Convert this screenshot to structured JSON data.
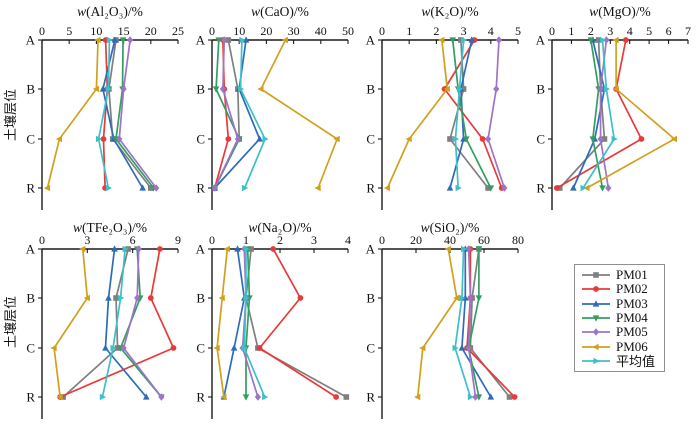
{
  "figure": {
    "y_axis_label": "土壤层位",
    "categories": [
      "A",
      "B",
      "C",
      "R"
    ],
    "axis_color": "#1a1a1a",
    "legend": {
      "entries": [
        {
          "label": "PM01",
          "color": "#7f7f7f",
          "marker": "square"
        },
        {
          "label": "PM02",
          "color": "#e83a3a",
          "marker": "circle"
        },
        {
          "label": "PM03",
          "color": "#2e6cb8",
          "marker": "triangle-up"
        },
        {
          "label": "PM04",
          "color": "#339e60",
          "marker": "triangle-down"
        },
        {
          "label": "PM05",
          "color": "#9d74c6",
          "marker": "diamond"
        },
        {
          "label": "PM06",
          "color": "#d2a11c",
          "marker": "triangle-left"
        },
        {
          "label": "平均值",
          "color": "#3dc0ca",
          "marker": "triangle-right"
        }
      ]
    }
  },
  "chart_data": [
    {
      "type": "line",
      "title_prefix": "w",
      "title_rest": "(Al₂O₃)/%",
      "xlim": [
        0,
        25
      ],
      "xticks": [
        0,
        5,
        10,
        15,
        20,
        25
      ],
      "categories": [
        "A",
        "B",
        "C",
        "R"
      ],
      "ylabel": "土壤层位",
      "series": [
        {
          "name": "PM01",
          "values": [
            13.6,
            12.3,
            13.0,
            20.0
          ]
        },
        {
          "name": "PM02",
          "values": [
            11.7,
            12.0,
            11.3,
            11.6
          ]
        },
        {
          "name": "PM03",
          "values": [
            13.4,
            11.2,
            13.2,
            18.5
          ]
        },
        {
          "name": "PM04",
          "values": [
            14.9,
            14.8,
            13.6,
            20.5
          ]
        },
        {
          "name": "PM05",
          "values": [
            16.2,
            15.0,
            14.2,
            21.0
          ]
        },
        {
          "name": "PM06",
          "values": [
            10.3,
            10.0,
            3.2,
            1.0
          ]
        },
        {
          "name": "平均值",
          "values": [
            12.4,
            12.2,
            10.4,
            12.2
          ]
        }
      ]
    },
    {
      "type": "line",
      "title_prefix": "w",
      "title_rest": "(CaO)/%",
      "xlim": [
        0,
        50
      ],
      "xticks": [
        0,
        10,
        20,
        30,
        40,
        50
      ],
      "categories": [
        "A",
        "B",
        "C",
        "R"
      ],
      "ylabel": "土壤层位",
      "series": [
        {
          "name": "PM01",
          "values": [
            6.0,
            9.5,
            10.0,
            1.0
          ]
        },
        {
          "name": "PM02",
          "values": [
            4.0,
            4.5,
            6.0,
            1.0
          ]
        },
        {
          "name": "PM03",
          "values": [
            12.5,
            10.0,
            17.5,
            1.0
          ]
        },
        {
          "name": "PM04",
          "values": [
            2.5,
            1.5,
            10.0,
            1.0
          ]
        },
        {
          "name": "PM05",
          "values": [
            4.5,
            4.0,
            9.5,
            1.0
          ]
        },
        {
          "name": "PM06",
          "values": [
            27.0,
            18.0,
            46.0,
            39.0
          ]
        },
        {
          "name": "平均值",
          "values": [
            11.0,
            10.5,
            19.5,
            12.0
          ]
        }
      ]
    },
    {
      "type": "line",
      "title_prefix": "w",
      "title_rest": "(K₂O)/%",
      "xlim": [
        0,
        5
      ],
      "xticks": [
        0,
        1,
        2,
        3,
        4,
        5
      ],
      "categories": [
        "A",
        "B",
        "C",
        "R"
      ],
      "ylabel": "土壤层位",
      "series": [
        {
          "name": "PM01",
          "values": [
            2.9,
            3.0,
            2.5,
            3.9
          ]
        },
        {
          "name": "PM02",
          "values": [
            3.4,
            2.3,
            3.7,
            4.4
          ]
        },
        {
          "name": "PM03",
          "values": [
            3.3,
            2.9,
            3.0,
            2.5
          ]
        },
        {
          "name": "PM04",
          "values": [
            2.6,
            2.8,
            3.1,
            4.0
          ]
        },
        {
          "name": "PM05",
          "values": [
            4.3,
            4.2,
            3.9,
            4.5
          ]
        },
        {
          "name": "PM06",
          "values": [
            2.2,
            2.4,
            1.0,
            0.2
          ]
        },
        {
          "name": "平均值",
          "values": [
            3.0,
            2.85,
            2.7,
            2.8
          ]
        }
      ]
    },
    {
      "type": "line",
      "title_prefix": "w",
      "title_rest": "(MgO)/%",
      "xlim": [
        0,
        7
      ],
      "xticks": [
        0,
        1,
        2,
        3,
        4,
        5,
        6,
        7
      ],
      "categories": [
        "A",
        "B",
        "C",
        "R"
      ],
      "ylabel": "土壤层位",
      "series": [
        {
          "name": "PM01",
          "values": [
            2.4,
            2.5,
            2.7,
            0.4
          ]
        },
        {
          "name": "PM02",
          "values": [
            3.8,
            3.3,
            4.6,
            0.25
          ]
        },
        {
          "name": "PM03",
          "values": [
            2.1,
            2.7,
            2.2,
            1.1
          ]
        },
        {
          "name": "PM04",
          "values": [
            2.0,
            2.4,
            2.1,
            2.6
          ]
        },
        {
          "name": "PM05",
          "values": [
            2.8,
            2.5,
            2.5,
            2.9
          ]
        },
        {
          "name": "PM06",
          "values": [
            3.3,
            3.3,
            6.3,
            1.8
          ]
        },
        {
          "name": "平均值",
          "values": [
            2.6,
            2.8,
            3.2,
            1.6
          ]
        }
      ]
    },
    {
      "type": "line",
      "title_prefix": "w",
      "title_rest": "(TFe₂O₃)/%",
      "xlim": [
        0,
        9
      ],
      "xticks": [
        0,
        3,
        6,
        9
      ],
      "categories": [
        "A",
        "B",
        "C",
        "R"
      ],
      "ylabel": "土壤层位",
      "series": [
        {
          "name": "PM01",
          "values": [
            5.7,
            4.9,
            5.0,
            1.4
          ]
        },
        {
          "name": "PM02",
          "values": [
            7.8,
            7.2,
            8.7,
            1.2
          ]
        },
        {
          "name": "PM03",
          "values": [
            4.8,
            4.4,
            4.2,
            6.9
          ]
        },
        {
          "name": "PM04",
          "values": [
            6.3,
            6.5,
            5.2,
            7.9
          ]
        },
        {
          "name": "PM05",
          "values": [
            6.4,
            6.3,
            5.4,
            7.9
          ]
        },
        {
          "name": "PM06",
          "values": [
            2.7,
            3.0,
            0.8,
            1.2
          ]
        },
        {
          "name": "平均值",
          "values": [
            5.5,
            5.2,
            4.7,
            4.0
          ]
        }
      ]
    },
    {
      "type": "line",
      "title_prefix": "w",
      "title_rest": "(Na₂O)/%",
      "xlim": [
        0,
        4
      ],
      "xticks": [
        0,
        1,
        2,
        3,
        4
      ],
      "categories": [
        "A",
        "B",
        "C",
        "R"
      ],
      "ylabel": "土壤层位",
      "series": [
        {
          "name": "PM01",
          "values": [
            1.15,
            1.0,
            1.35,
            3.95
          ]
        },
        {
          "name": "PM02",
          "values": [
            1.8,
            2.6,
            1.4,
            3.65
          ]
        },
        {
          "name": "PM03",
          "values": [
            0.75,
            0.95,
            0.65,
            0.35
          ]
        },
        {
          "name": "PM04",
          "values": [
            1.05,
            1.1,
            1.0,
            1.0
          ]
        },
        {
          "name": "PM05",
          "values": [
            0.95,
            1.0,
            0.9,
            1.35
          ]
        },
        {
          "name": "PM06",
          "values": [
            0.45,
            0.3,
            0.15,
            0.35
          ]
        },
        {
          "name": "平均值",
          "values": [
            1.0,
            1.0,
            0.95,
            1.55
          ]
        }
      ]
    },
    {
      "type": "line",
      "title_prefix": "w",
      "title_rest": "(SiO₂)/%",
      "xlim": [
        0,
        80
      ],
      "xticks": [
        0,
        20,
        40,
        60,
        80
      ],
      "categories": [
        "A",
        "B",
        "C",
        "R"
      ],
      "ylabel": "土壤层位",
      "series": [
        {
          "name": "PM01",
          "values": [
            57,
            53,
            52,
            75
          ]
        },
        {
          "name": "PM02",
          "values": [
            52,
            52,
            50,
            78
          ]
        },
        {
          "name": "PM03",
          "values": [
            49,
            49,
            47,
            64
          ]
        },
        {
          "name": "PM04",
          "values": [
            57,
            57,
            51,
            57
          ]
        },
        {
          "name": "PM05",
          "values": [
            51,
            52,
            51,
            55
          ]
        },
        {
          "name": "PM06",
          "values": [
            39,
            44,
            24,
            21
          ]
        },
        {
          "name": "平均值",
          "values": [
            48,
            47,
            43,
            52
          ]
        }
      ]
    }
  ]
}
